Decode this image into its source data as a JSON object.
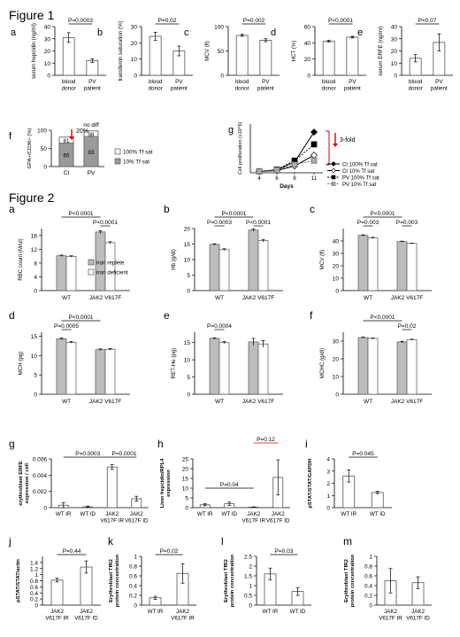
{
  "figure1": {
    "title": "Figure 1",
    "panels": [
      {
        "id": "a",
        "letter": "a",
        "ylabel": "serum hepcidin (ng/ml)",
        "ylim": [
          0,
          40
        ],
        "ticks": [
          0,
          10,
          20,
          30,
          40
        ],
        "ptext": "P=0.0003",
        "categories": [
          "blood donor",
          "PV patient"
        ],
        "values": [
          31,
          12
        ],
        "errors": [
          4,
          1.5
        ]
      },
      {
        "id": "b",
        "letter": "b",
        "ylabel": "transferrin saturation (%)",
        "ylim": [
          0,
          30
        ],
        "ticks": [
          0,
          10,
          20,
          30
        ],
        "ptext": "P=0.02",
        "categories": [
          "blood donor",
          "PV patient"
        ],
        "values": [
          24,
          15
        ],
        "errors": [
          2.5,
          3
        ]
      },
      {
        "id": "c",
        "letter": "c",
        "ylabel": "MCV (fl)",
        "ylim": [
          0,
          100
        ],
        "ticks": [
          0,
          50,
          100
        ],
        "ptext": "P=0.002",
        "categories": [
          "blood donor",
          "PV patient"
        ],
        "values": [
          82,
          72
        ],
        "errors": [
          2,
          3
        ]
      },
      {
        "id": "d",
        "letter": "d",
        "ylabel": "HCT (%)",
        "ylim": [
          0,
          60
        ],
        "ticks": [
          0,
          20,
          40,
          60
        ],
        "ptext": "P<0.0001",
        "categories": [
          "blood donor",
          "PV patient"
        ],
        "values": [
          42,
          47
        ],
        "errors": [
          1,
          1
        ]
      },
      {
        "id": "e",
        "letter": "e",
        "ylabel": "serum ERFE (ng/ml)",
        "ylim": [
          0,
          40
        ],
        "ticks": [
          0,
          10,
          20,
          30,
          40
        ],
        "ptext": "P=0.07",
        "categories": [
          "blood donor",
          "PV patient"
        ],
        "values": [
          14,
          27
        ],
        "errors": [
          3,
          7
        ]
      }
    ],
    "panel_f": {
      "letter": "f",
      "ylabel": "GPA+/CD36+ (%)",
      "ylim": [
        0,
        100
      ],
      "ticks": [
        0,
        50,
        100
      ],
      "categories": [
        "Ct",
        "PV"
      ],
      "series": [
        {
          "name": "100% Tf sat",
          "values": [
            81,
            98
          ]
        },
        {
          "name": "10% Tf sat",
          "values": [
            65,
            83
          ]
        }
      ],
      "bar_labels": [
        "81",
        "65",
        "98",
        "83"
      ],
      "annotations": [
        "20%",
        "no diff"
      ],
      "legend": [
        "100% Tf sat",
        "10% Tf sat"
      ]
    },
    "panel_g": {
      "letter": "g",
      "ylabel": "Cell proliferation (x10^6)",
      "xlabel": "Days",
      "x": [
        4,
        6,
        8,
        11
      ],
      "ylim": [
        0,
        180
      ],
      "series": [
        {
          "name": "Ct 100% Tf sat",
          "values": [
            5,
            10,
            40,
            150
          ]
        },
        {
          "name": "Ct 10% Tf sat",
          "values": [
            5,
            8,
            25,
            65
          ]
        },
        {
          "name": "PV 100% Tf sat",
          "values": [
            5,
            12,
            45,
            105
          ]
        },
        {
          "name": "PV 10% Tf sat",
          "values": [
            5,
            10,
            30,
            45
          ]
        }
      ],
      "annotation": "3-fold"
    }
  },
  "figure2": {
    "title": "Figure 2",
    "legend": [
      "iron replete",
      "iron deficient"
    ],
    "top_panels": [
      {
        "id": "a",
        "letter": "a",
        "ylabel": "RBC count (M/ul)",
        "ylim": [
          0,
          18
        ],
        "ticks": [
          0,
          4,
          8,
          12,
          16
        ],
        "groups": [
          "WT",
          "JAK2 V617F"
        ],
        "values": [
          [
            10.1,
            9.9
          ],
          [
            17.0,
            13.9
          ]
        ],
        "errors": [
          [
            0.2,
            0.2
          ],
          [
            0.4,
            0.3
          ]
        ],
        "pvals": [
          {
            "text": "P<0.0001",
            "from": 0,
            "to": 2,
            "level": 1
          },
          {
            "text": "P<0.0001",
            "from": 2,
            "to": 3,
            "level": 0
          }
        ]
      },
      {
        "id": "b",
        "letter": "b",
        "ylabel": "Hb (g/dl)",
        "ylim": [
          0,
          20
        ],
        "ticks": [
          0,
          5,
          10,
          15,
          20
        ],
        "groups": [
          "WT",
          "JAK2 V617F"
        ],
        "values": [
          [
            14.9,
            13.2
          ],
          [
            19.5,
            16.1
          ]
        ],
        "errors": [
          [
            0.2,
            0.3
          ],
          [
            0.4,
            0.4
          ]
        ],
        "pvals": [
          {
            "text": "P=0.0003",
            "from": 0,
            "to": 1,
            "level": 0
          },
          {
            "text": "P<0.0001",
            "from": 0,
            "to": 2,
            "level": 1
          },
          {
            "text": "P<0.0001",
            "from": 2,
            "to": 3,
            "level": 0
          }
        ]
      },
      {
        "id": "c",
        "letter": "c",
        "ylabel": "MCV (fl)",
        "ylim": [
          0,
          50
        ],
        "ticks": [
          0,
          10,
          20,
          30,
          40
        ],
        "groups": [
          "WT",
          "JAK2 V617F"
        ],
        "values": [
          [
            44.5,
            42.5
          ],
          [
            39.5,
            38
          ]
        ],
        "errors": [
          [
            0.5,
            0.5
          ],
          [
            0.4,
            0.3
          ]
        ],
        "pvals": [
          {
            "text": "P=0.003",
            "from": 0,
            "to": 1,
            "level": 0
          },
          {
            "text": "P<0.0001",
            "from": 0,
            "to": 2,
            "level": 1
          },
          {
            "text": "P=0.003",
            "from": 2,
            "to": 3,
            "level": 0
          }
        ]
      },
      {
        "id": "d",
        "letter": "d",
        "ylabel": "MCH (pg)",
        "ylim": [
          0,
          16
        ],
        "ticks": [
          0,
          5,
          10,
          15
        ],
        "groups": [
          "WT",
          "JAK2 V617F"
        ],
        "values": [
          [
            14.3,
            13.4
          ],
          [
            11.5,
            11.6
          ]
        ],
        "errors": [
          [
            0.2,
            0.2
          ],
          [
            0.2,
            0.2
          ]
        ],
        "pvals": [
          {
            "text": "P=0.0005",
            "from": 0,
            "to": 1,
            "level": 0
          },
          {
            "text": "P<0.0001",
            "from": 0,
            "to": 2,
            "level": 1
          }
        ]
      },
      {
        "id": "e",
        "letter": "e",
        "ylabel": "RET-He (pg)",
        "ylim": [
          0,
          18
        ],
        "ticks": [
          0,
          5,
          10,
          15
        ],
        "groups": [
          "WT",
          "JAK2 V617F"
        ],
        "values": [
          [
            16.2,
            15.0
          ],
          [
            15.2,
            14.6
          ]
        ],
        "errors": [
          [
            0.2,
            0.3
          ],
          [
            1.0,
            1.0
          ]
        ],
        "pvals": [
          {
            "text": "P=0.0004",
            "from": 0,
            "to": 1,
            "level": 0
          }
        ]
      },
      {
        "id": "f",
        "letter": "f",
        "ylabel": "MCHC (g/dl)",
        "ylim": [
          0,
          35
        ],
        "ticks": [
          0,
          10,
          20,
          30
        ],
        "groups": [
          "WT",
          "JAK2 V617F"
        ],
        "values": [
          [
            32,
            31.5
          ],
          [
            29.5,
            30.8
          ]
        ],
        "errors": [
          [
            0.3,
            0.3
          ],
          [
            0.4,
            0.3
          ]
        ],
        "pvals": [
          {
            "text": "P<0.0001",
            "from": 0,
            "to": 2,
            "level": 1
          },
          {
            "text": "P=0.02",
            "from": 2,
            "to": 3,
            "level": 0
          }
        ]
      }
    ],
    "bottom_panels": [
      {
        "id": "g",
        "letter": "g",
        "ylabel": "erythroblast ERFE expression / cell",
        "ylim": [
          0,
          0.006
        ],
        "ticks": [
          0,
          0.002,
          0.004,
          0.006
        ],
        "tick_labels": [
          "0",
          "0.002",
          "0.004",
          "0.006"
        ],
        "categories": [
          "WT IR",
          "WT ID",
          "JAK2 V617F IR",
          "JAK2 V617F ID"
        ],
        "values": [
          0.0003,
          0.0001,
          0.005,
          0.0011
        ],
        "errors": [
          0.0003,
          0.0001,
          0.0003,
          0.0003
        ],
        "pvals": [
          {
            "text": "P=0.0003",
            "from": 0,
            "to": 2,
            "level": 0,
            "color": "#000"
          },
          {
            "text": "P=0.0001",
            "from": 2,
            "to": 3,
            "level": 0,
            "color": "#000"
          }
        ]
      },
      {
        "id": "h",
        "letter": "h",
        "ylabel": "Liver hepcidin/RPL4 expression",
        "ylim": [
          0,
          25
        ],
        "ticks": [
          0,
          5,
          10,
          15,
          20,
          25
        ],
        "tick_labels": [
          "0",
          "5",
          "10",
          "15",
          "20",
          "25"
        ],
        "categories": [
          "WT IR",
          "WT ID",
          "JAK2 V617F IR",
          "JAK2 V617F ID"
        ],
        "values": [
          1.5,
          2,
          0.3,
          15.5
        ],
        "errors": [
          0.5,
          0.8,
          0.1,
          9
        ],
        "pvals": [
          {
            "text": "P=0.04",
            "from": 0,
            "to": 2,
            "level": 0,
            "color": "#000"
          },
          {
            "text": "P=0.12",
            "from": 2,
            "to": 3,
            "level": 2,
            "color": "#d00000"
          }
        ]
      },
      {
        "id": "i",
        "letter": "i",
        "ylabel": "pSTAT/STAT/GAPDH",
        "ylim": [
          0,
          4
        ],
        "ticks": [
          0,
          1,
          2,
          3,
          4
        ],
        "tick_labels": [
          "0",
          "1",
          "2",
          "3",
          "4"
        ],
        "categories": [
          "WT IR",
          "WT ID"
        ],
        "values": [
          2.6,
          1.25
        ],
        "errors": [
          0.5,
          0.1
        ],
        "pvals": [
          {
            "text": "P=0.045",
            "from": 0,
            "to": 1,
            "level": 0,
            "color": "#000"
          }
        ]
      },
      {
        "id": "j",
        "letter": "j",
        "ylabel": "pSTAT/STAT/actin",
        "ylim": [
          0,
          1.6
        ],
        "ticks": [
          0,
          0.2,
          0.4,
          0.6,
          0.8,
          1.0,
          1.2,
          1.4
        ],
        "tick_labels": [
          "0",
          "0.2",
          "0.4",
          "0.6",
          "0.8",
          "1",
          "1.2",
          "1.4"
        ],
        "categories": [
          "JAK2 V617F IR",
          "JAK2 V617F ID"
        ],
        "values": [
          0.82,
          1.25
        ],
        "errors": [
          0.06,
          0.2
        ],
        "pvals": [
          {
            "text": "P=0.44",
            "from": 0,
            "to": 1,
            "level": 0,
            "color": "#000"
          }
        ]
      },
      {
        "id": "k",
        "letter": "k",
        "ylabel": "Erythroblast TfR2 protein concentration",
        "ylim": [
          0,
          1
        ],
        "ticks": [
          0,
          0.2,
          0.4,
          0.6,
          0.8,
          1.0
        ],
        "tick_labels": [
          "0",
          "0.2",
          "0.4",
          "0.6",
          "0.8",
          "1"
        ],
        "categories": [
          "WT IR",
          "JAK2 V617F IR"
        ],
        "values": [
          0.15,
          0.65
        ],
        "errors": [
          0.03,
          0.2
        ],
        "pvals": [
          {
            "text": "P=0.02",
            "from": 0,
            "to": 1,
            "level": 0,
            "color": "#000"
          }
        ]
      },
      {
        "id": "l",
        "letter": "l",
        "ylabel": "Erythroblast TfR2 protein concentration",
        "ylim": [
          0,
          2.5
        ],
        "ticks": [
          0,
          0.5,
          1.0,
          1.5,
          2.0,
          2.5
        ],
        "tick_labels": [
          "0",
          "0.5",
          "1",
          "1.5",
          "2",
          "2.5"
        ],
        "categories": [
          "WT IR",
          "WT ID"
        ],
        "values": [
          1.6,
          0.7
        ],
        "errors": [
          0.3,
          0.2
        ],
        "pvals": [
          {
            "text": "P=0.03",
            "from": 0,
            "to": 1,
            "level": 0,
            "color": "#000"
          }
        ]
      },
      {
        "id": "m",
        "letter": "m",
        "ylabel": "Erythroblast TfR2 protein concentration",
        "ylim": [
          0,
          1
        ],
        "ticks": [
          0,
          0.2,
          0.4,
          0.6,
          0.8,
          1.0
        ],
        "tick_labels": [
          "0",
          "0.2",
          "0.4",
          "0.6",
          "0.8",
          "1"
        ],
        "categories": [
          "JAK2 V617F IR",
          "JAK2 V617F ID"
        ],
        "values": [
          0.5,
          0.46
        ],
        "errors": [
          0.25,
          0.12
        ],
        "pvals": []
      }
    ]
  }
}
